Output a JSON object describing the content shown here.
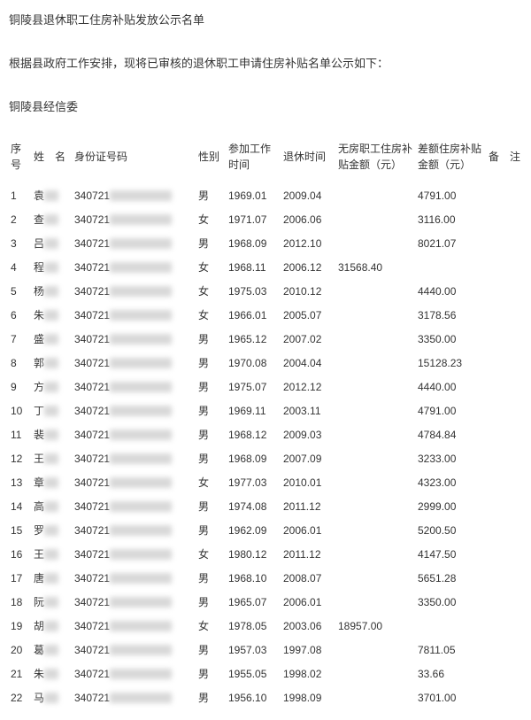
{
  "title": "铜陵县退休职工住房补贴发放公示名单",
  "subtitle": "根据县政府工作安排，现将已审核的退休职工申请住房补贴名单公示如下：",
  "org": "铜陵县经信委",
  "columns": {
    "idx": "序号",
    "name": "姓　名",
    "id": "身份证号码",
    "sex": "性别",
    "work": "参加工作时间",
    "ret": "退休时间",
    "a1": "无房职工住房补贴金额（元）",
    "a2": "差额住房补贴金额（元）",
    "note": "备　注"
  },
  "id_prefix": "340721",
  "rows": [
    {
      "idx": "1",
      "surname": "袁",
      "sex": "男",
      "work": "1969.01",
      "ret": "2009.04",
      "a1": "",
      "a2": "4791.00"
    },
    {
      "idx": "2",
      "surname": "查",
      "sex": "女",
      "work": "1971.07",
      "ret": "2006.06",
      "a1": "",
      "a2": "3116.00"
    },
    {
      "idx": "3",
      "surname": "吕",
      "sex": "男",
      "work": "1968.09",
      "ret": "2012.10",
      "a1": "",
      "a2": "8021.07"
    },
    {
      "idx": "4",
      "surname": "程",
      "sex": "女",
      "work": "1968.11",
      "ret": "2006.12",
      "a1": "31568.40",
      "a2": ""
    },
    {
      "idx": "5",
      "surname": "杨",
      "sex": "女",
      "work": "1975.03",
      "ret": "2010.12",
      "a1": "",
      "a2": "4440.00"
    },
    {
      "idx": "6",
      "surname": "朱",
      "sex": "女",
      "work": "1966.01",
      "ret": "2005.07",
      "a1": "",
      "a2": "3178.56"
    },
    {
      "idx": "7",
      "surname": "盛",
      "sex": "男",
      "work": "1965.12",
      "ret": "2007.02",
      "a1": "",
      "a2": "3350.00"
    },
    {
      "idx": "8",
      "surname": "郭",
      "sex": "男",
      "work": "1970.08",
      "ret": "2004.04",
      "a1": "",
      "a2": "15128.23"
    },
    {
      "idx": "9",
      "surname": "方",
      "sex": "男",
      "work": "1975.07",
      "ret": "2012.12",
      "a1": "",
      "a2": "4440.00"
    },
    {
      "idx": "10",
      "surname": "丁",
      "sex": "男",
      "work": "1969.11",
      "ret": "2003.11",
      "a1": "",
      "a2": "4791.00"
    },
    {
      "idx": "11",
      "surname": "裴",
      "sex": "男",
      "work": "1968.12",
      "ret": "2009.03",
      "a1": "",
      "a2": "4784.84"
    },
    {
      "idx": "12",
      "surname": "王",
      "sex": "男",
      "work": "1968.09",
      "ret": "2007.09",
      "a1": "",
      "a2": "3233.00"
    },
    {
      "idx": "13",
      "surname": "章",
      "sex": "女",
      "work": "1977.03",
      "ret": "2010.01",
      "a1": "",
      "a2": "4323.00"
    },
    {
      "idx": "14",
      "surname": "高",
      "sex": "男",
      "work": "1974.08",
      "ret": "2011.12",
      "a1": "",
      "a2": "2999.00"
    },
    {
      "idx": "15",
      "surname": "罗",
      "sex": "男",
      "work": "1962.09",
      "ret": "2006.01",
      "a1": "",
      "a2": "5200.50"
    },
    {
      "idx": "16",
      "surname": "王",
      "sex": "女",
      "work": "1980.12",
      "ret": "2011.12",
      "a1": "",
      "a2": "4147.50"
    },
    {
      "idx": "17",
      "surname": "唐",
      "sex": "男",
      "work": "1968.10",
      "ret": "2008.07",
      "a1": "",
      "a2": "5651.28"
    },
    {
      "idx": "18",
      "surname": "阮",
      "sex": "男",
      "work": "1965.07",
      "ret": "2006.01",
      "a1": "",
      "a2": "3350.00"
    },
    {
      "idx": "19",
      "surname": "胡",
      "sex": "女",
      "work": "1978.05",
      "ret": "2003.06",
      "a1": "18957.00",
      "a2": ""
    },
    {
      "idx": "20",
      "surname": "葛",
      "sex": "男",
      "work": "1957.03",
      "ret": "1997.08",
      "a1": "",
      "a2": "7811.05"
    },
    {
      "idx": "21",
      "surname": "朱",
      "sex": "男",
      "work": "1955.05",
      "ret": "1998.02",
      "a1": "",
      "a2": "33.66"
    },
    {
      "idx": "22",
      "surname": "马",
      "sex": "男",
      "work": "1956.10",
      "ret": "1998.09",
      "a1": "",
      "a2": "3701.00"
    }
  ]
}
